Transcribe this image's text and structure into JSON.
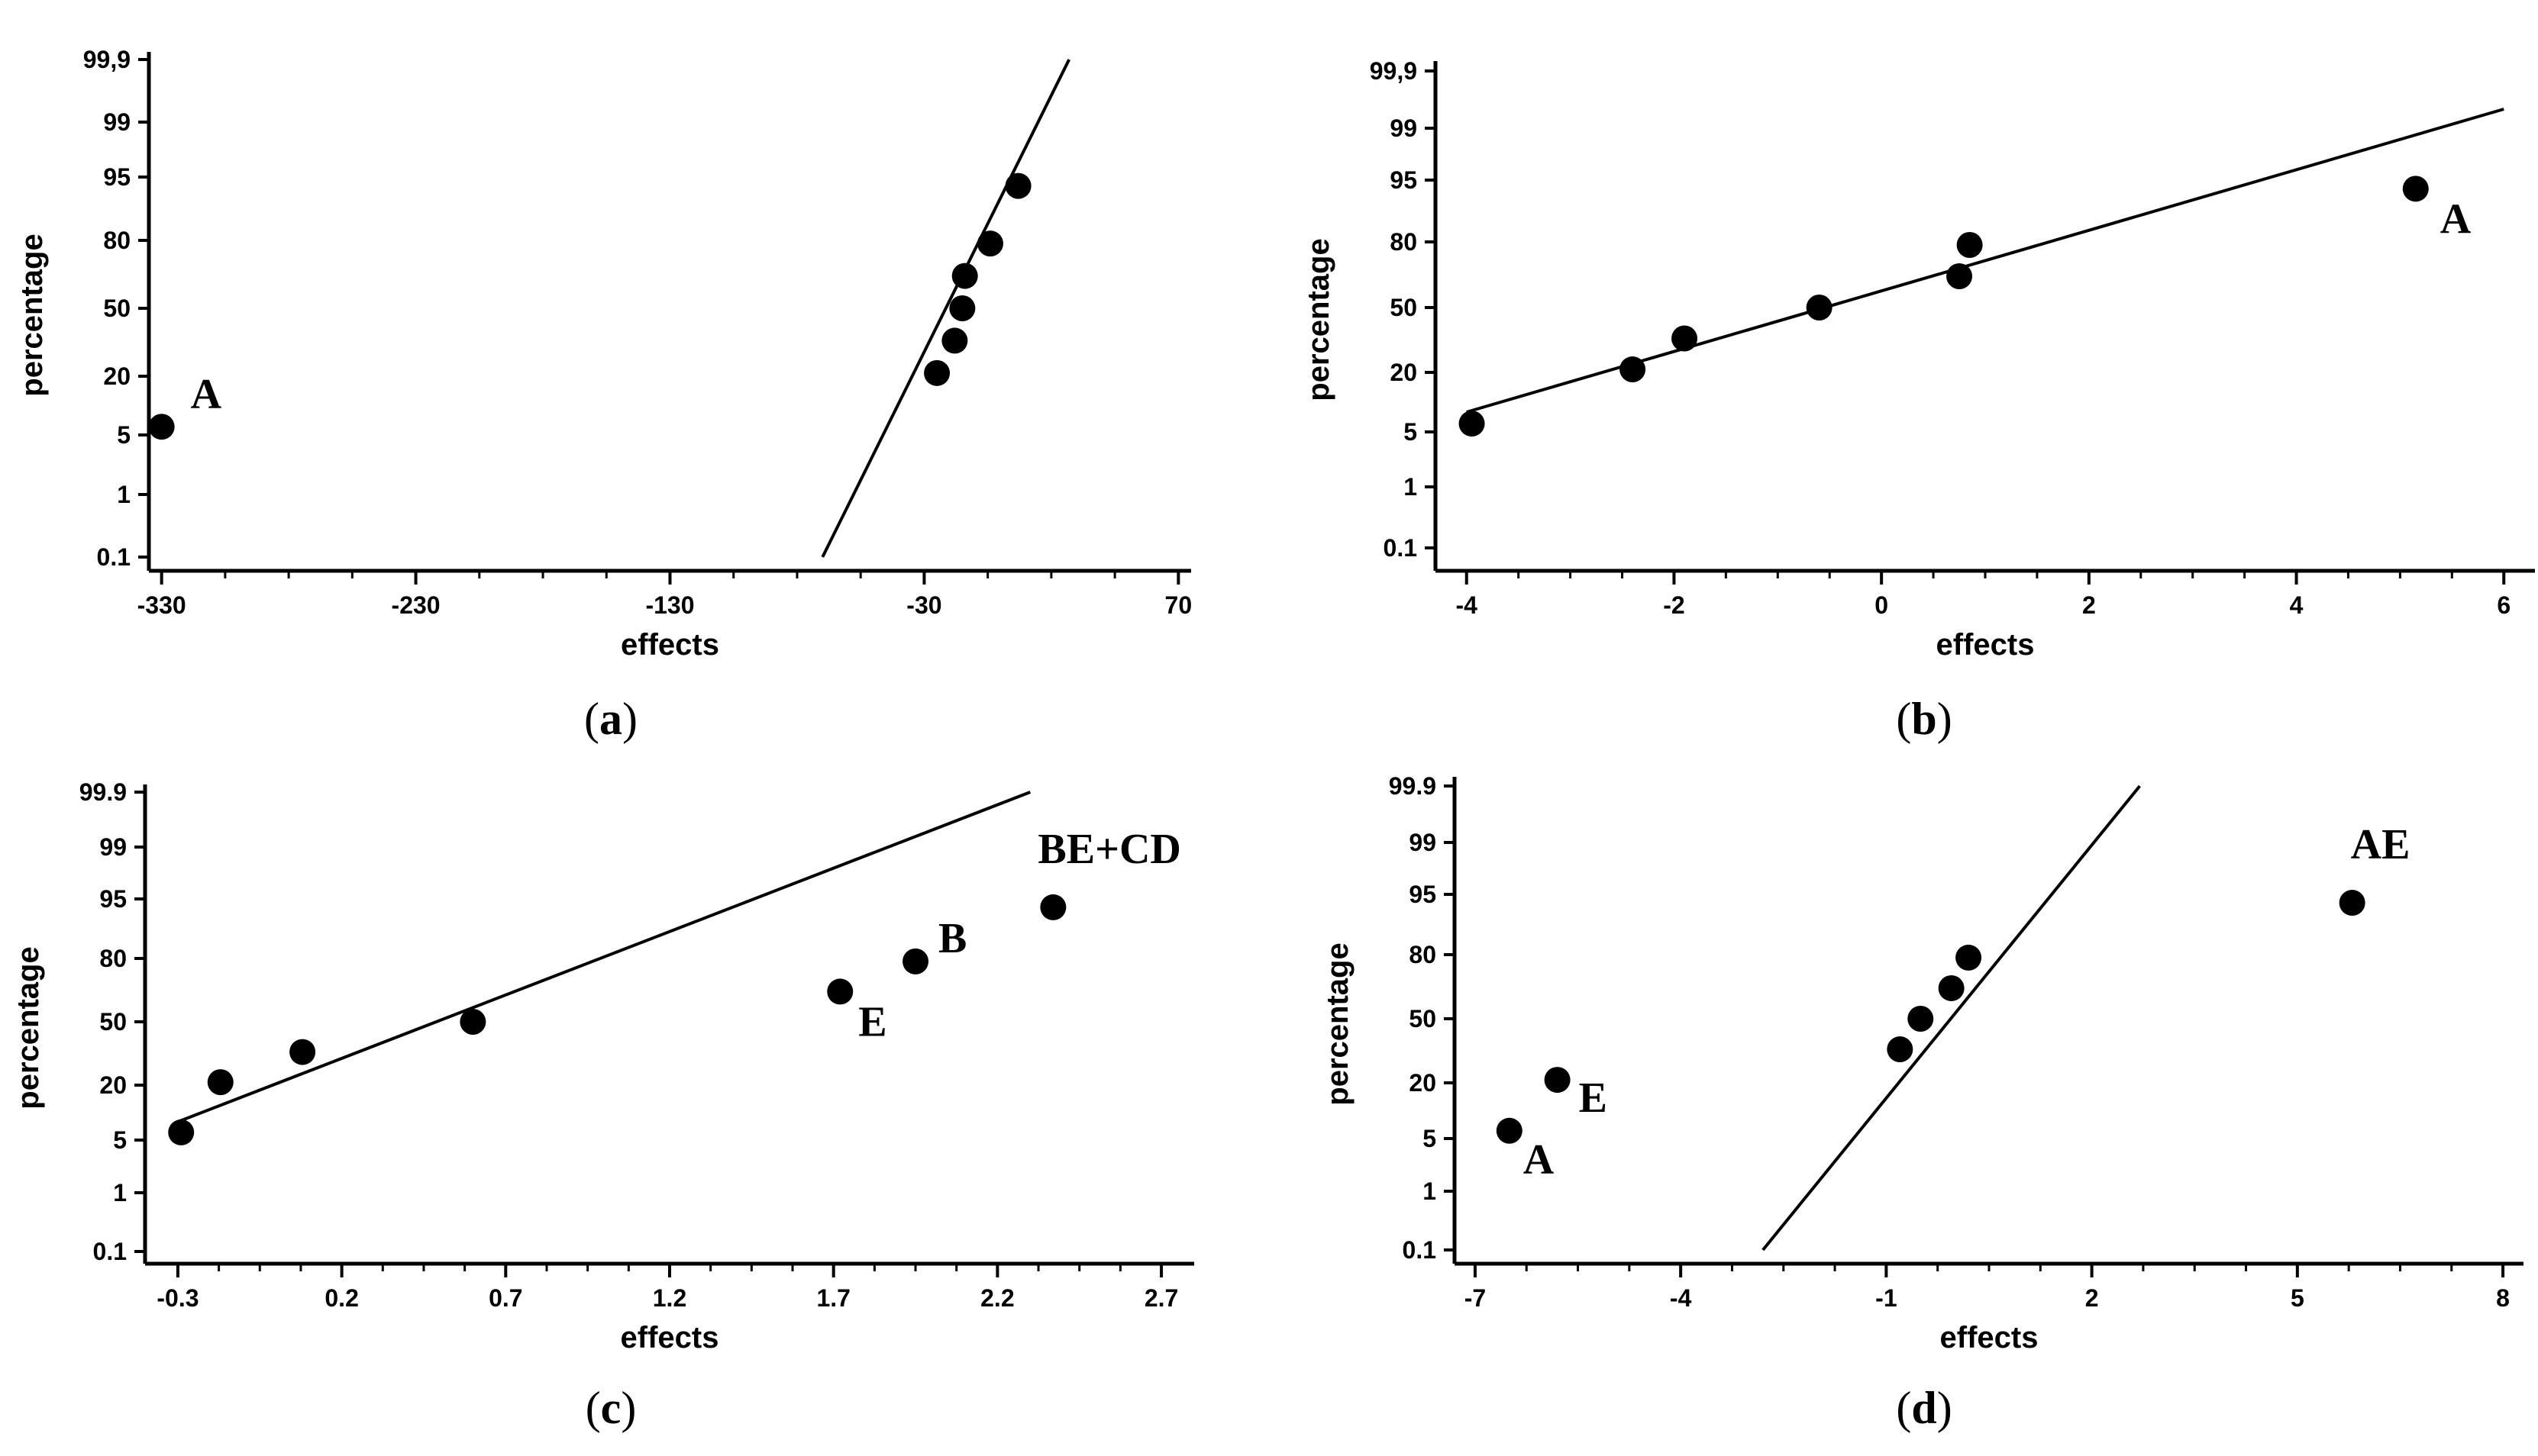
{
  "chart_data": [
    {
      "type": "scatter",
      "panel": "a",
      "caption": {
        "open": "(",
        "letter": "a",
        "close": ")"
      },
      "xlabel": "effects",
      "ylabel": "percentage",
      "xlim": [
        -335,
        75
      ],
      "x_ticks": [
        -330,
        -230,
        -130,
        -30,
        70
      ],
      "x_tick_labels": [
        "-330",
        "-230",
        "-130",
        "-30",
        "70"
      ],
      "y_ticks": [
        0.1,
        1,
        5,
        20,
        50,
        80,
        95,
        99,
        99.9
      ],
      "y_tick_labels": [
        "0.1",
        "1",
        "5",
        "20",
        "50",
        "80",
        "95",
        "99",
        "99,9"
      ],
      "points": [
        {
          "x": -330,
          "y": 7.1,
          "label": "A"
        },
        {
          "x": -25,
          "y": 21.4
        },
        {
          "x": -18,
          "y": 35.7
        },
        {
          "x": -15,
          "y": 50
        },
        {
          "x": -14,
          "y": 64.3
        },
        {
          "x": -4,
          "y": 78.6
        },
        {
          "x": 7,
          "y": 92.9
        }
      ],
      "fit_line": {
        "x1": -70,
        "y1": 0.1,
        "x2": 27,
        "y2": 99.9
      }
    },
    {
      "type": "scatter",
      "panel": "b",
      "caption": {
        "open": "(",
        "letter": "b",
        "close": ")"
      },
      "xlabel": "effects",
      "ylabel": "percentage",
      "xlim": [
        -4.3,
        6.3
      ],
      "x_ticks": [
        -4,
        -2,
        0,
        2,
        4,
        6
      ],
      "x_tick_labels": [
        "-4",
        "-2",
        "0",
        "2",
        "4",
        "6"
      ],
      "y_ticks": [
        0.1,
        1,
        5,
        20,
        50,
        80,
        95,
        99,
        99.9
      ],
      "y_tick_labels": [
        "0.1",
        "1",
        "5",
        "20",
        "50",
        "80",
        "95",
        "99",
        "99,9"
      ],
      "points": [
        {
          "x": -3.95,
          "y": 7.1
        },
        {
          "x": -2.4,
          "y": 21.4
        },
        {
          "x": -1.9,
          "y": 35.7
        },
        {
          "x": -0.6,
          "y": 50
        },
        {
          "x": 0.75,
          "y": 64.3
        },
        {
          "x": 0.85,
          "y": 78.6
        },
        {
          "x": 5.15,
          "y": 92.9,
          "label": "A"
        }
      ],
      "fit_line": {
        "x1": -4,
        "y1": 10,
        "x2": 6,
        "y2": 99.3
      }
    },
    {
      "type": "scatter",
      "panel": "c",
      "caption": {
        "open": "(",
        "letter": "c",
        "close": ")"
      },
      "xlabel": "effects",
      "ylabel": "percentage",
      "xlim": [
        -0.4,
        2.8
      ],
      "x_ticks": [
        -0.3,
        0.2,
        0.7,
        1.2,
        1.7,
        2.2,
        2.7
      ],
      "x_tick_labels": [
        "-0.3",
        "0.2",
        "0.7",
        "1.2",
        "1.7",
        "2.2",
        "2.7"
      ],
      "y_ticks": [
        0.1,
        1,
        5,
        20,
        50,
        80,
        95,
        99,
        99.9
      ],
      "y_tick_labels": [
        "0.1",
        "1",
        "5",
        "20",
        "50",
        "80",
        "95",
        "99",
        "99.9"
      ],
      "points": [
        {
          "x": -0.29,
          "y": 7.1
        },
        {
          "x": -0.17,
          "y": 21.4
        },
        {
          "x": 0.08,
          "y": 35.7
        },
        {
          "x": 0.6,
          "y": 50
        },
        {
          "x": 1.72,
          "y": 64.3,
          "label": "E"
        },
        {
          "x": 1.95,
          "y": 78.6,
          "label": "B"
        },
        {
          "x": 2.37,
          "y": 92.9,
          "label": "BE+CD"
        }
      ],
      "fit_line": {
        "x1": -0.3,
        "y1": 10,
        "x2": 2.3,
        "y2": 99.9
      }
    },
    {
      "type": "scatter",
      "panel": "d",
      "caption": {
        "open": "(",
        "letter": "d",
        "close": ")"
      },
      "xlabel": "effects",
      "ylabel": "percentage",
      "xlim": [
        -7.3,
        8.3
      ],
      "x_ticks": [
        -7,
        -4,
        -1,
        2,
        5,
        8
      ],
      "x_tick_labels": [
        "-7",
        "-4",
        "-1",
        "2",
        "5",
        "8"
      ],
      "y_ticks": [
        0.1,
        1,
        5,
        20,
        50,
        80,
        95,
        99,
        99.9
      ],
      "y_tick_labels": [
        "0.1",
        "1",
        "5",
        "20",
        "50",
        "80",
        "95",
        "99",
        "99.9"
      ],
      "points": [
        {
          "x": -6.5,
          "y": 7.1,
          "label": "A"
        },
        {
          "x": -5.8,
          "y": 21.4,
          "label": "E"
        },
        {
          "x": -0.8,
          "y": 35.7
        },
        {
          "x": -0.5,
          "y": 50
        },
        {
          "x": -0.05,
          "y": 64.3
        },
        {
          "x": 0.2,
          "y": 78.6
        },
        {
          "x": 5.8,
          "y": 92.9,
          "label": "AE"
        }
      ],
      "fit_line": {
        "x1": -2.8,
        "y1": 0.1,
        "x2": 2.7,
        "y2": 99.9
      }
    }
  ]
}
